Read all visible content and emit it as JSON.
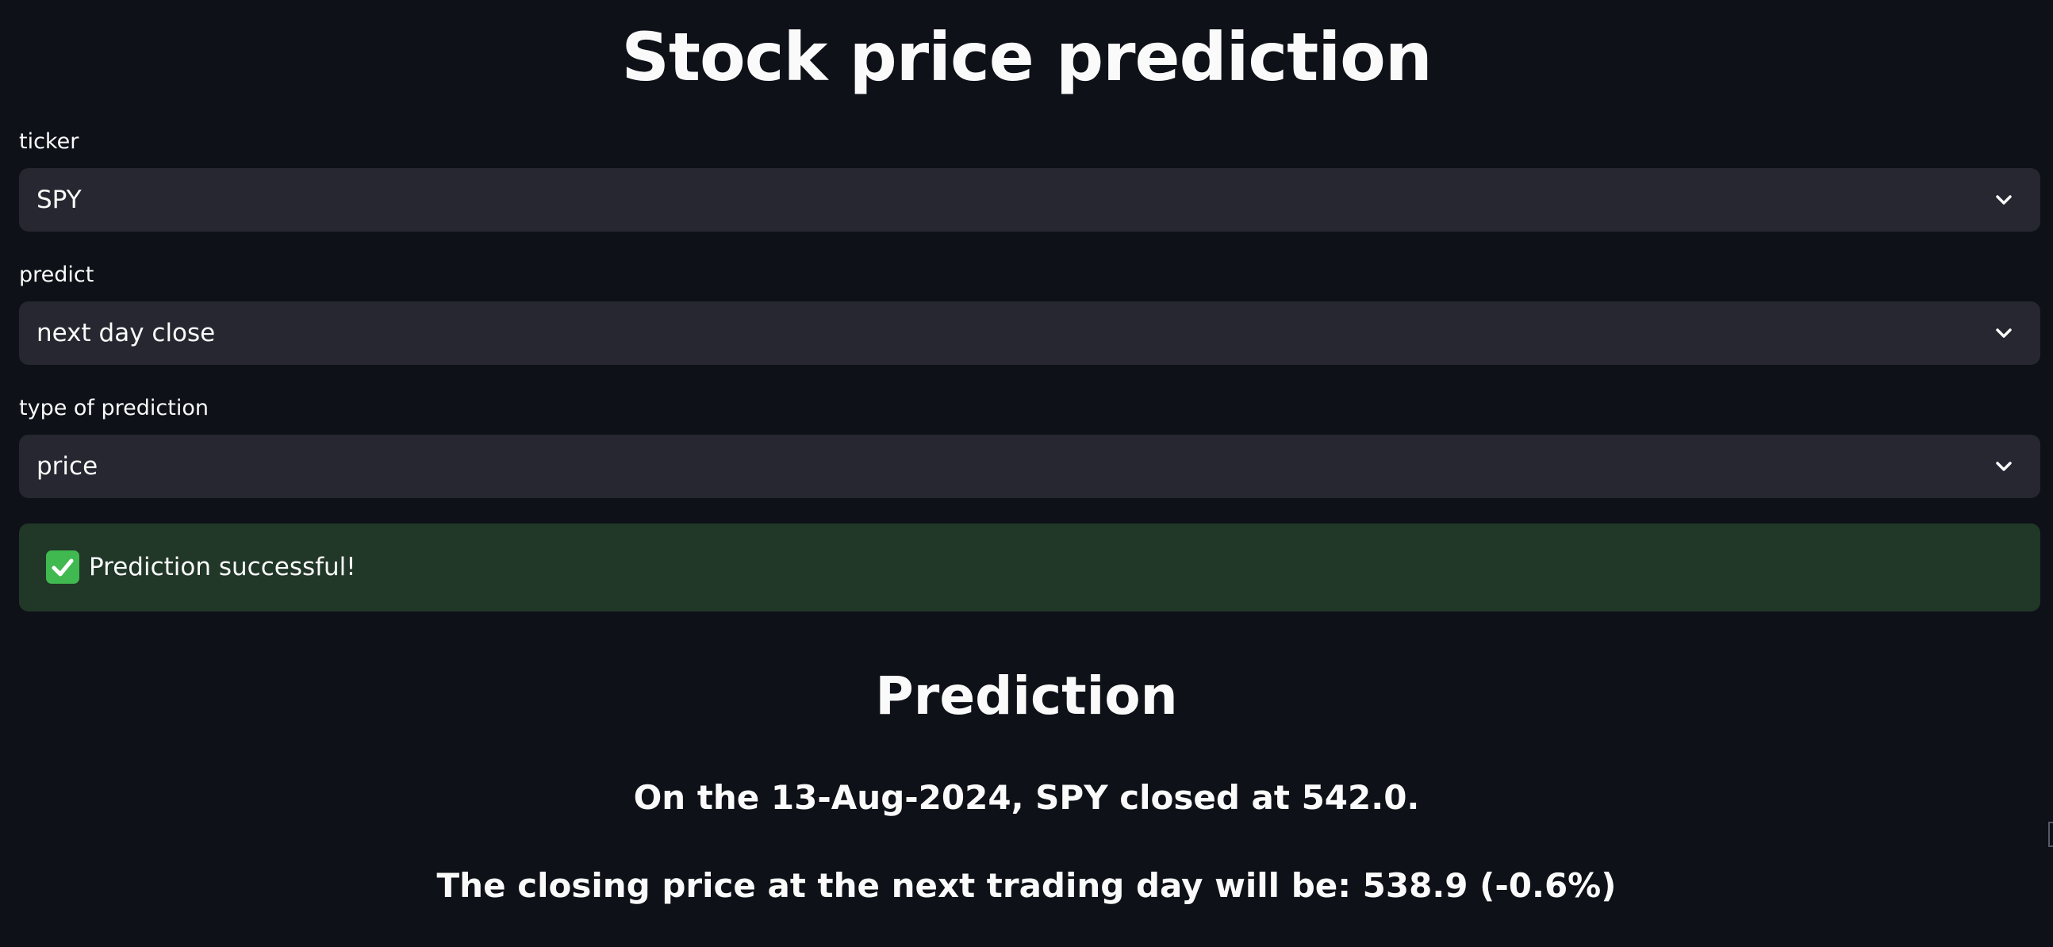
{
  "page": {
    "title": "Stock price prediction"
  },
  "form": {
    "ticker": {
      "label": "ticker",
      "value": "SPY"
    },
    "predict": {
      "label": "predict",
      "value": "next day close"
    },
    "prediction_type": {
      "label": "type of prediction",
      "value": "price"
    }
  },
  "alert": {
    "text": "Prediction successful!",
    "icon": "check-mark-icon"
  },
  "result": {
    "heading": "Prediction",
    "close_line": "On the 13-Aug-2024, SPY closed at 542.0.",
    "forecast_line": "The closing price at the next trading day will be: 538.9 (-0.6%)"
  },
  "colors": {
    "background": "#0e1117",
    "input_background": "#262730",
    "success_background": "#213728",
    "success_icon": "#3fb950",
    "text": "#fafafa"
  }
}
